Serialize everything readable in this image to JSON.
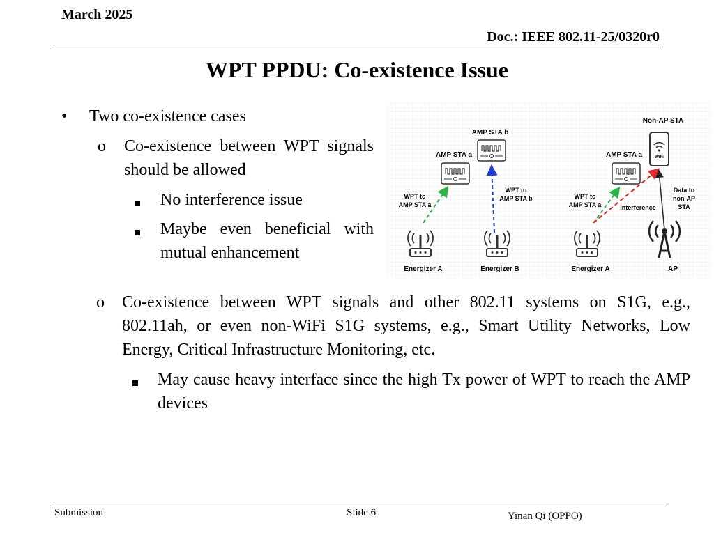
{
  "header": {
    "date": "March 2025",
    "doc": "Doc.: IEEE 802.11-25/0320r0"
  },
  "title": "WPT PPDU: Co-existence Issue",
  "body": {
    "l1_bullet": "•",
    "l1_text": "Two co-existence cases",
    "case1": {
      "marker": "o",
      "text": "Co-existence between WPT signals should be allowed",
      "subs": [
        "No interference issue",
        "Maybe even beneficial with mutual enhancement"
      ]
    },
    "case2": {
      "marker": "o",
      "text": "Co-existence between WPT signals and other 802.11 systems on S1G, e.g., 802.11ah, or even non-WiFi S1G systems, e.g., Smart Utility Networks, Low Energy, Critical Infrastructure Monitoring, etc.",
      "subs": [
        "May cause heavy interface since the high Tx power of WPT to reach the AMP devices"
      ]
    }
  },
  "diagram": {
    "left": {
      "amp_sta_b": "AMP STA b",
      "amp_sta_a": "AMP STA a",
      "wpt_a_1": "WPT to",
      "wpt_a_2": "AMP STA a",
      "wpt_b_1": "WPT to",
      "wpt_b_2": "AMP STA b",
      "energizer_a": "Energizer A",
      "energizer_b": "Energizer B"
    },
    "right": {
      "non_ap_sta": "Non-AP STA",
      "amp_sta_a": "AMP STA a",
      "wpt_a_1": "WPT to",
      "wpt_a_2": "AMP STA a",
      "interference": "interference",
      "data_1": "Data to",
      "data_2": "non-AP",
      "data_3": "STA",
      "energizer_a": "Energizer A",
      "ap": "AP",
      "wifi": "WiFi"
    },
    "colors": {
      "green": "#2db34a",
      "blue": "#1f3fd1",
      "red": "#e0262a"
    }
  },
  "footer": {
    "left": "Submission",
    "center": "Slide 6",
    "right": "Yinan Qi (OPPO)"
  }
}
